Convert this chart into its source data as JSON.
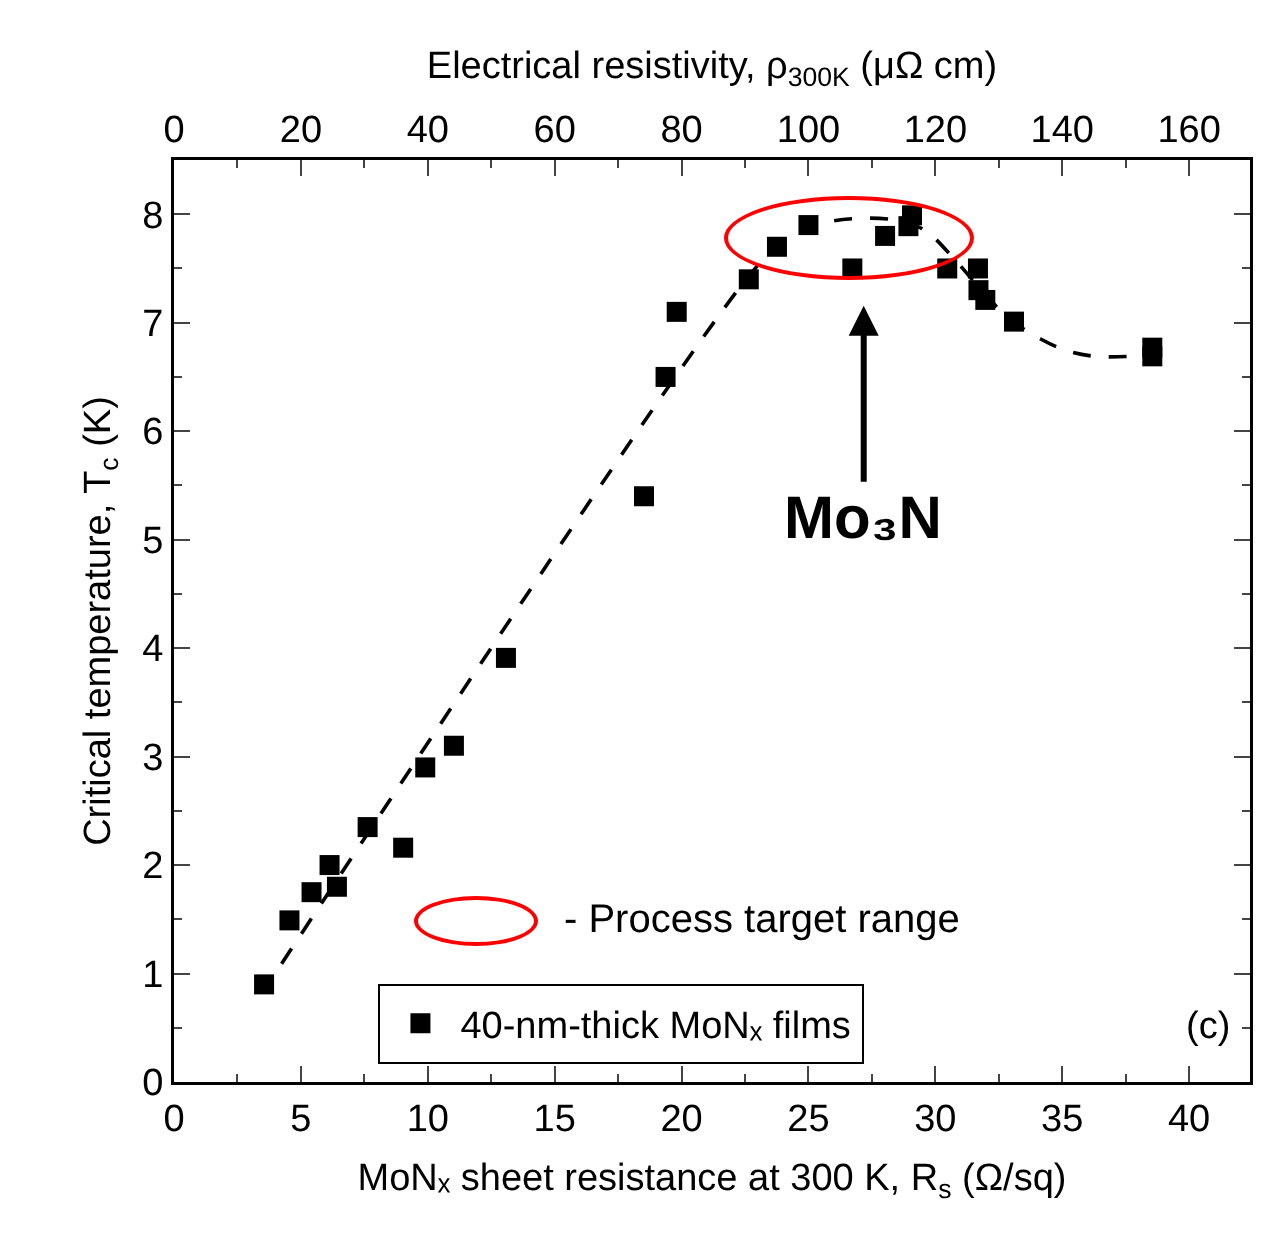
{
  "chart_data": {
    "type": "scatter",
    "xlabel": "MoNₓ sheet resistance at 300 K, R$_{s}$ (Ω/sq)",
    "ylabel": "Critical temperature, T$_{c}$ (K)",
    "x2label": "Electrical resistivity, ρ$_{300K}$ (μΩ cm)",
    "xlim": [
      0,
      42.4
    ],
    "xticks": [
      0,
      5,
      10,
      15,
      20,
      25,
      30,
      35,
      40
    ],
    "x2lim": [
      0,
      169.6
    ],
    "x2ticks": [
      0,
      20,
      40,
      60,
      80,
      100,
      120,
      140,
      160
    ],
    "ylim": [
      0,
      8.5
    ],
    "yticks": [
      0,
      1,
      2,
      3,
      4,
      5,
      6,
      7,
      8
    ],
    "grid": false,
    "legend": "bottom",
    "marker": "square",
    "series": [
      {
        "name": "40-nm-thick MoNₓ films",
        "color": "#000000",
        "x": [
          3.55,
          4.55,
          5.42,
          6.13,
          6.42,
          7.63,
          9.03,
          9.9,
          11.03,
          13.08,
          18.52,
          19.37,
          19.81,
          22.65,
          23.76,
          25.0,
          26.73,
          28.02,
          28.94,
          29.08,
          30.47,
          31.68,
          31.7,
          31.97,
          33.1,
          38.55,
          38.55
        ],
        "values": [
          0.9,
          1.49,
          1.75,
          2.0,
          1.8,
          2.35,
          2.16,
          2.9,
          3.1,
          3.91,
          5.4,
          6.5,
          7.1,
          7.4,
          7.7,
          7.9,
          7.5,
          7.8,
          7.89,
          7.99,
          7.5,
          7.5,
          7.3,
          7.21,
          7.01,
          6.77,
          6.69
        ]
      },
      {
        "type": "line",
        "color": "#000000",
        "line_style": "dashed",
        "marker": "none",
        "x": [
          4.24,
          22.65,
          24,
          25.3,
          26.8,
          28.6,
          29.6,
          30.7,
          32,
          33,
          34.15,
          35.2,
          36.3,
          37.7
        ],
        "values": [
          1.09,
          7.43,
          7.75,
          7.9,
          7.96,
          7.94,
          7.85,
          7.6,
          7.25,
          7.02,
          6.85,
          6.74,
          6.69,
          6.69
        ]
      }
    ],
    "annotations": [
      "Mo₃N",
      "- Process target range",
      "(c)"
    ]
  }
}
